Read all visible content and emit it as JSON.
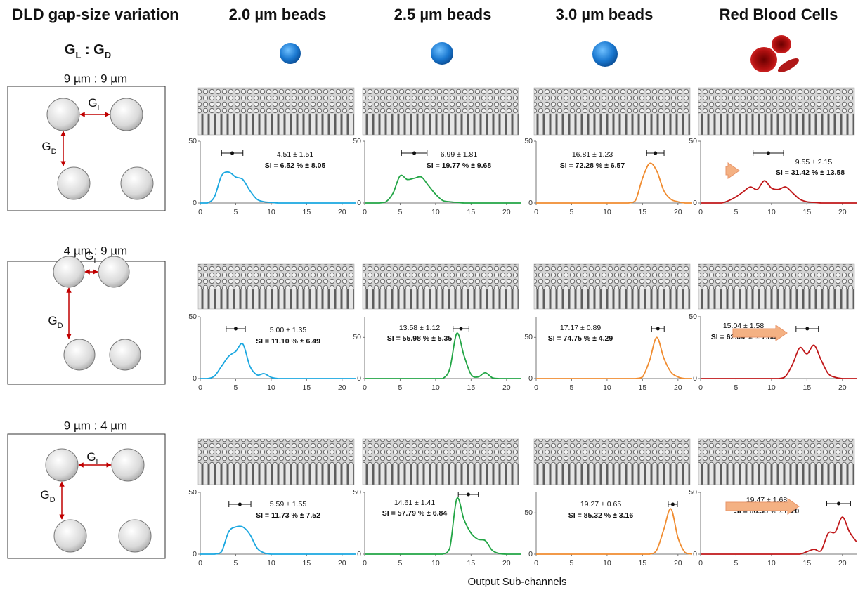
{
  "header": {
    "title": "DLD gap-size variation",
    "ratio": {
      "g1": "G",
      "s1": "L",
      "sep": " : ",
      "g2": "G",
      "s2": "D"
    },
    "columns": [
      "2.0 µm beads",
      "2.5 µm beads",
      "3.0 µm beads",
      "Red Blood Cells"
    ]
  },
  "rows": [
    {
      "label": "9 µm : 9 µm",
      "gl": {
        "g": "G",
        "sub": "L"
      },
      "gd": {
        "g": "G",
        "sub": "D"
      }
    },
    {
      "label": "4 µm : 9 µm",
      "gl": {
        "g": "G",
        "sub": "L"
      },
      "gd": {
        "g": "G",
        "sub": "D"
      }
    },
    {
      "label": "9 µm : 4 µm",
      "gl": {
        "g": "G",
        "sub": "L"
      },
      "gd": {
        "g": "G",
        "sub": "D"
      }
    }
  ],
  "x_axis_label": "Output Sub-channels",
  "chart_data": [
    {
      "type": "line",
      "color": "#1aa7e0",
      "x": [
        0,
        1,
        2,
        3,
        4,
        5,
        6,
        7,
        8,
        9,
        10,
        11,
        12,
        13,
        14,
        15,
        16,
        17,
        18,
        19,
        20,
        21,
        22
      ],
      "values": [
        0,
        0,
        5,
        22,
        25,
        21,
        19,
        10,
        3,
        1,
        0.5,
        0,
        0,
        0,
        0,
        0,
        0,
        0,
        0,
        0,
        0,
        0,
        0
      ],
      "xlim": [
        0,
        22
      ],
      "xticks": [
        0,
        5,
        10,
        15,
        20
      ],
      "ylim": [
        0,
        50
      ],
      "yticks": [
        0,
        50
      ],
      "error_bar": {
        "mean": 4.51,
        "sd": 1.51,
        "label": "4.51 ± 1.51"
      },
      "si_label": "SI = 6.52 % ± 8.05"
    },
    {
      "type": "line",
      "color": "#22a545",
      "x": [
        0,
        1,
        2,
        3,
        4,
        5,
        6,
        7,
        8,
        9,
        10,
        11,
        12,
        13,
        14,
        15,
        16,
        17,
        18,
        19,
        20,
        21,
        22
      ],
      "values": [
        0,
        0,
        0,
        1,
        8,
        22,
        19,
        20,
        21,
        14,
        7,
        2,
        1,
        0.5,
        0,
        0,
        0,
        0,
        0,
        0,
        0,
        0,
        0
      ],
      "xlim": [
        0,
        22
      ],
      "xticks": [
        0,
        5,
        10,
        15,
        20
      ],
      "ylim": [
        0,
        50
      ],
      "yticks": [
        0,
        50
      ],
      "error_bar": {
        "mean": 6.99,
        "sd": 1.81,
        "label": "6.99 ± 1.81"
      },
      "si_label": "SI = 19.77 % ± 9.68"
    },
    {
      "type": "line",
      "color": "#f08c30",
      "x": [
        0,
        1,
        2,
        3,
        4,
        5,
        6,
        7,
        8,
        9,
        10,
        11,
        12,
        13,
        14,
        15,
        16,
        17,
        18,
        19,
        20,
        21,
        22
      ],
      "values": [
        0,
        0,
        0,
        0,
        0,
        0,
        0,
        0,
        0,
        0,
        0,
        0,
        0,
        0,
        2,
        20,
        32,
        26,
        10,
        3,
        1,
        0,
        0
      ],
      "xlim": [
        0,
        22
      ],
      "xticks": [
        0,
        5,
        10,
        15,
        20
      ],
      "ylim": [
        0,
        50
      ],
      "yticks": [
        0,
        50
      ],
      "error_bar": {
        "mean": 16.81,
        "sd": 1.23,
        "label": "16.81 ± 1.23"
      },
      "si_label": "SI = 72.28 % ± 6.57"
    },
    {
      "type": "line",
      "color": "#c0181a",
      "x": [
        0,
        1,
        2,
        3,
        4,
        5,
        6,
        7,
        8,
        9,
        10,
        11,
        12,
        13,
        14,
        15,
        16,
        17,
        18,
        19,
        20,
        21,
        22
      ],
      "values": [
        0,
        0,
        0,
        0,
        2,
        5,
        9,
        13,
        11,
        18,
        12,
        11,
        13,
        8,
        3,
        1,
        0.5,
        0,
        0,
        0,
        0,
        0,
        0
      ],
      "xlim": [
        0,
        22
      ],
      "xticks": [
        0,
        5,
        10,
        15,
        20
      ],
      "ylim": [
        0,
        50
      ],
      "yticks": [
        0,
        50
      ],
      "error_bar": {
        "mean": 9.55,
        "sd": 2.15,
        "label": "9.55 ± 2.15"
      },
      "si_label": "SI = 31.42 % ± 13.58"
    },
    {
      "type": "line",
      "color": "#1aa7e0",
      "x": [
        0,
        1,
        2,
        3,
        4,
        5,
        6,
        7,
        8,
        9,
        10,
        11,
        12,
        13,
        14,
        15,
        16,
        17,
        18,
        19,
        20,
        21,
        22
      ],
      "values": [
        0,
        0,
        2,
        10,
        18,
        22,
        28,
        10,
        3,
        4,
        1,
        0,
        0,
        0,
        0,
        0,
        0,
        0,
        0,
        0,
        0,
        0,
        0
      ],
      "xlim": [
        0,
        22
      ],
      "xticks": [
        0,
        5,
        10,
        15,
        20
      ],
      "ylim": [
        0,
        50
      ],
      "yticks": [
        0,
        50
      ],
      "error_bar": {
        "mean": 5.0,
        "sd": 1.35,
        "label": "5.00 ± 1.35"
      },
      "si_label": "SI = 11.10 % ± 6.49"
    },
    {
      "type": "line",
      "color": "#22a545",
      "x": [
        0,
        1,
        2,
        3,
        4,
        5,
        6,
        7,
        8,
        9,
        10,
        11,
        12,
        13,
        14,
        15,
        16,
        17,
        18,
        19,
        20,
        21,
        22
      ],
      "values": [
        0,
        0,
        0,
        0,
        0,
        0,
        0,
        0,
        0,
        0,
        0,
        0,
        12,
        55,
        28,
        5,
        2,
        7,
        1,
        0,
        0,
        0,
        0
      ],
      "xlim": [
        0,
        22
      ],
      "xticks": [
        0,
        5,
        10,
        15,
        20
      ],
      "ylim": [
        0,
        75
      ],
      "yticks": [
        0,
        50
      ],
      "error_bar": {
        "mean": 13.58,
        "sd": 1.12,
        "label": "13.58 ± 1.12"
      },
      "si_label": "SI = 55.98 % ± 5.35"
    },
    {
      "type": "line",
      "color": "#f08c30",
      "x": [
        0,
        1,
        2,
        3,
        4,
        5,
        6,
        7,
        8,
        9,
        10,
        11,
        12,
        13,
        14,
        15,
        16,
        17,
        18,
        19,
        20,
        21,
        22
      ],
      "values": [
        0,
        0,
        0,
        0,
        0,
        0,
        0,
        0,
        0,
        0,
        0,
        0,
        0,
        0,
        0,
        2,
        22,
        50,
        25,
        8,
        2,
        0,
        0
      ],
      "xlim": [
        0,
        22
      ],
      "xticks": [
        0,
        5,
        10,
        15,
        20
      ],
      "ylim": [
        0,
        75
      ],
      "yticks": [
        0,
        50
      ],
      "error_bar": {
        "mean": 17.17,
        "sd": 0.89,
        "label": "17.17 ± 0.89"
      },
      "si_label": "SI = 74.75 % ± 4.29"
    },
    {
      "type": "line",
      "color": "#c0181a",
      "x": [
        0,
        1,
        2,
        3,
        4,
        5,
        6,
        7,
        8,
        9,
        10,
        11,
        12,
        13,
        14,
        15,
        16,
        17,
        18,
        19,
        20,
        21,
        22
      ],
      "values": [
        0,
        0,
        0,
        0,
        0,
        0,
        0,
        0,
        0,
        0,
        0,
        0,
        2,
        12,
        25,
        20,
        27,
        15,
        4,
        1,
        0,
        0,
        0
      ],
      "xlim": [
        0,
        22
      ],
      "xticks": [
        0,
        5,
        10,
        15,
        20
      ],
      "ylim": [
        0,
        50
      ],
      "yticks": [
        0,
        50
      ],
      "error_bar": {
        "mean": 15.04,
        "sd": 1.58,
        "label": "15.04 ± 1.58"
      },
      "si_label": "SI = 62.04 % ± 7.86"
    },
    {
      "type": "line",
      "color": "#1aa7e0",
      "x": [
        0,
        1,
        2,
        3,
        4,
        5,
        6,
        7,
        8,
        9,
        10,
        11,
        12,
        13,
        14,
        15,
        16,
        17,
        18,
        19,
        20,
        21,
        22
      ],
      "values": [
        0,
        0,
        0,
        2,
        18,
        22,
        22,
        16,
        5,
        1,
        0,
        0,
        0,
        0,
        0,
        0,
        0,
        0,
        0,
        0,
        0,
        0,
        0
      ],
      "xlim": [
        0,
        22
      ],
      "xticks": [
        0,
        5,
        10,
        15,
        20
      ],
      "ylim": [
        0,
        50
      ],
      "yticks": [
        0,
        50
      ],
      "error_bar": {
        "mean": 5.59,
        "sd": 1.55,
        "label": "5.59 ± 1.55"
      },
      "si_label": "SI = 11.73 % ± 7.52"
    },
    {
      "type": "line",
      "color": "#22a545",
      "x": [
        0,
        1,
        2,
        3,
        4,
        5,
        6,
        7,
        8,
        9,
        10,
        11,
        12,
        13,
        14,
        15,
        16,
        17,
        18,
        19,
        20,
        21,
        22
      ],
      "values": [
        0,
        0,
        0,
        0,
        0,
        0,
        0,
        0,
        0,
        0,
        0,
        0,
        5,
        45,
        28,
        17,
        12,
        11,
        3,
        0.5,
        0,
        0,
        0
      ],
      "xlim": [
        0,
        22
      ],
      "xticks": [
        0,
        5,
        10,
        15,
        20
      ],
      "ylim": [
        0,
        50
      ],
      "yticks": [
        0,
        50
      ],
      "error_bar": {
        "mean": 14.61,
        "sd": 1.41,
        "label": "14.61 ± 1.41"
      },
      "si_label": "SI = 57.79 % ± 6.84"
    },
    {
      "type": "line",
      "color": "#f08c30",
      "x": [
        0,
        1,
        2,
        3,
        4,
        5,
        6,
        7,
        8,
        9,
        10,
        11,
        12,
        13,
        14,
        15,
        16,
        17,
        18,
        19,
        20,
        21,
        22
      ],
      "values": [
        0,
        0,
        0,
        0,
        0,
        0,
        0,
        0,
        0,
        0,
        0,
        0,
        0,
        0,
        0,
        0,
        0,
        5,
        30,
        55,
        20,
        2,
        0
      ],
      "xlim": [
        0,
        22
      ],
      "xticks": [
        0,
        5,
        10,
        15,
        20
      ],
      "ylim": [
        0,
        75
      ],
      "yticks": [
        0,
        50
      ],
      "error_bar": {
        "mean": 19.27,
        "sd": 0.65,
        "label": "19.27 ± 0.65"
      },
      "si_label": "SI = 85.32 % ± 3.16"
    },
    {
      "type": "line",
      "color": "#c0181a",
      "x": [
        0,
        1,
        2,
        3,
        4,
        5,
        6,
        7,
        8,
        9,
        10,
        11,
        12,
        13,
        14,
        15,
        16,
        17,
        18,
        19,
        20,
        21,
        22
      ],
      "values": [
        0,
        0,
        0,
        0,
        0,
        0,
        0,
        0,
        0,
        0,
        0,
        0,
        0,
        0,
        0,
        2,
        4,
        3,
        17,
        18,
        30,
        18,
        10
      ],
      "xlim": [
        0,
        22
      ],
      "xticks": [
        0,
        5,
        10,
        15,
        20
      ],
      "ylim": [
        0,
        50
      ],
      "yticks": [
        0,
        50
      ],
      "error_bar": {
        "mean": 19.47,
        "sd": 1.68,
        "label": "19.47 ± 1.68"
      },
      "si_label": "SI = 86.58 % ± 8.20"
    }
  ]
}
